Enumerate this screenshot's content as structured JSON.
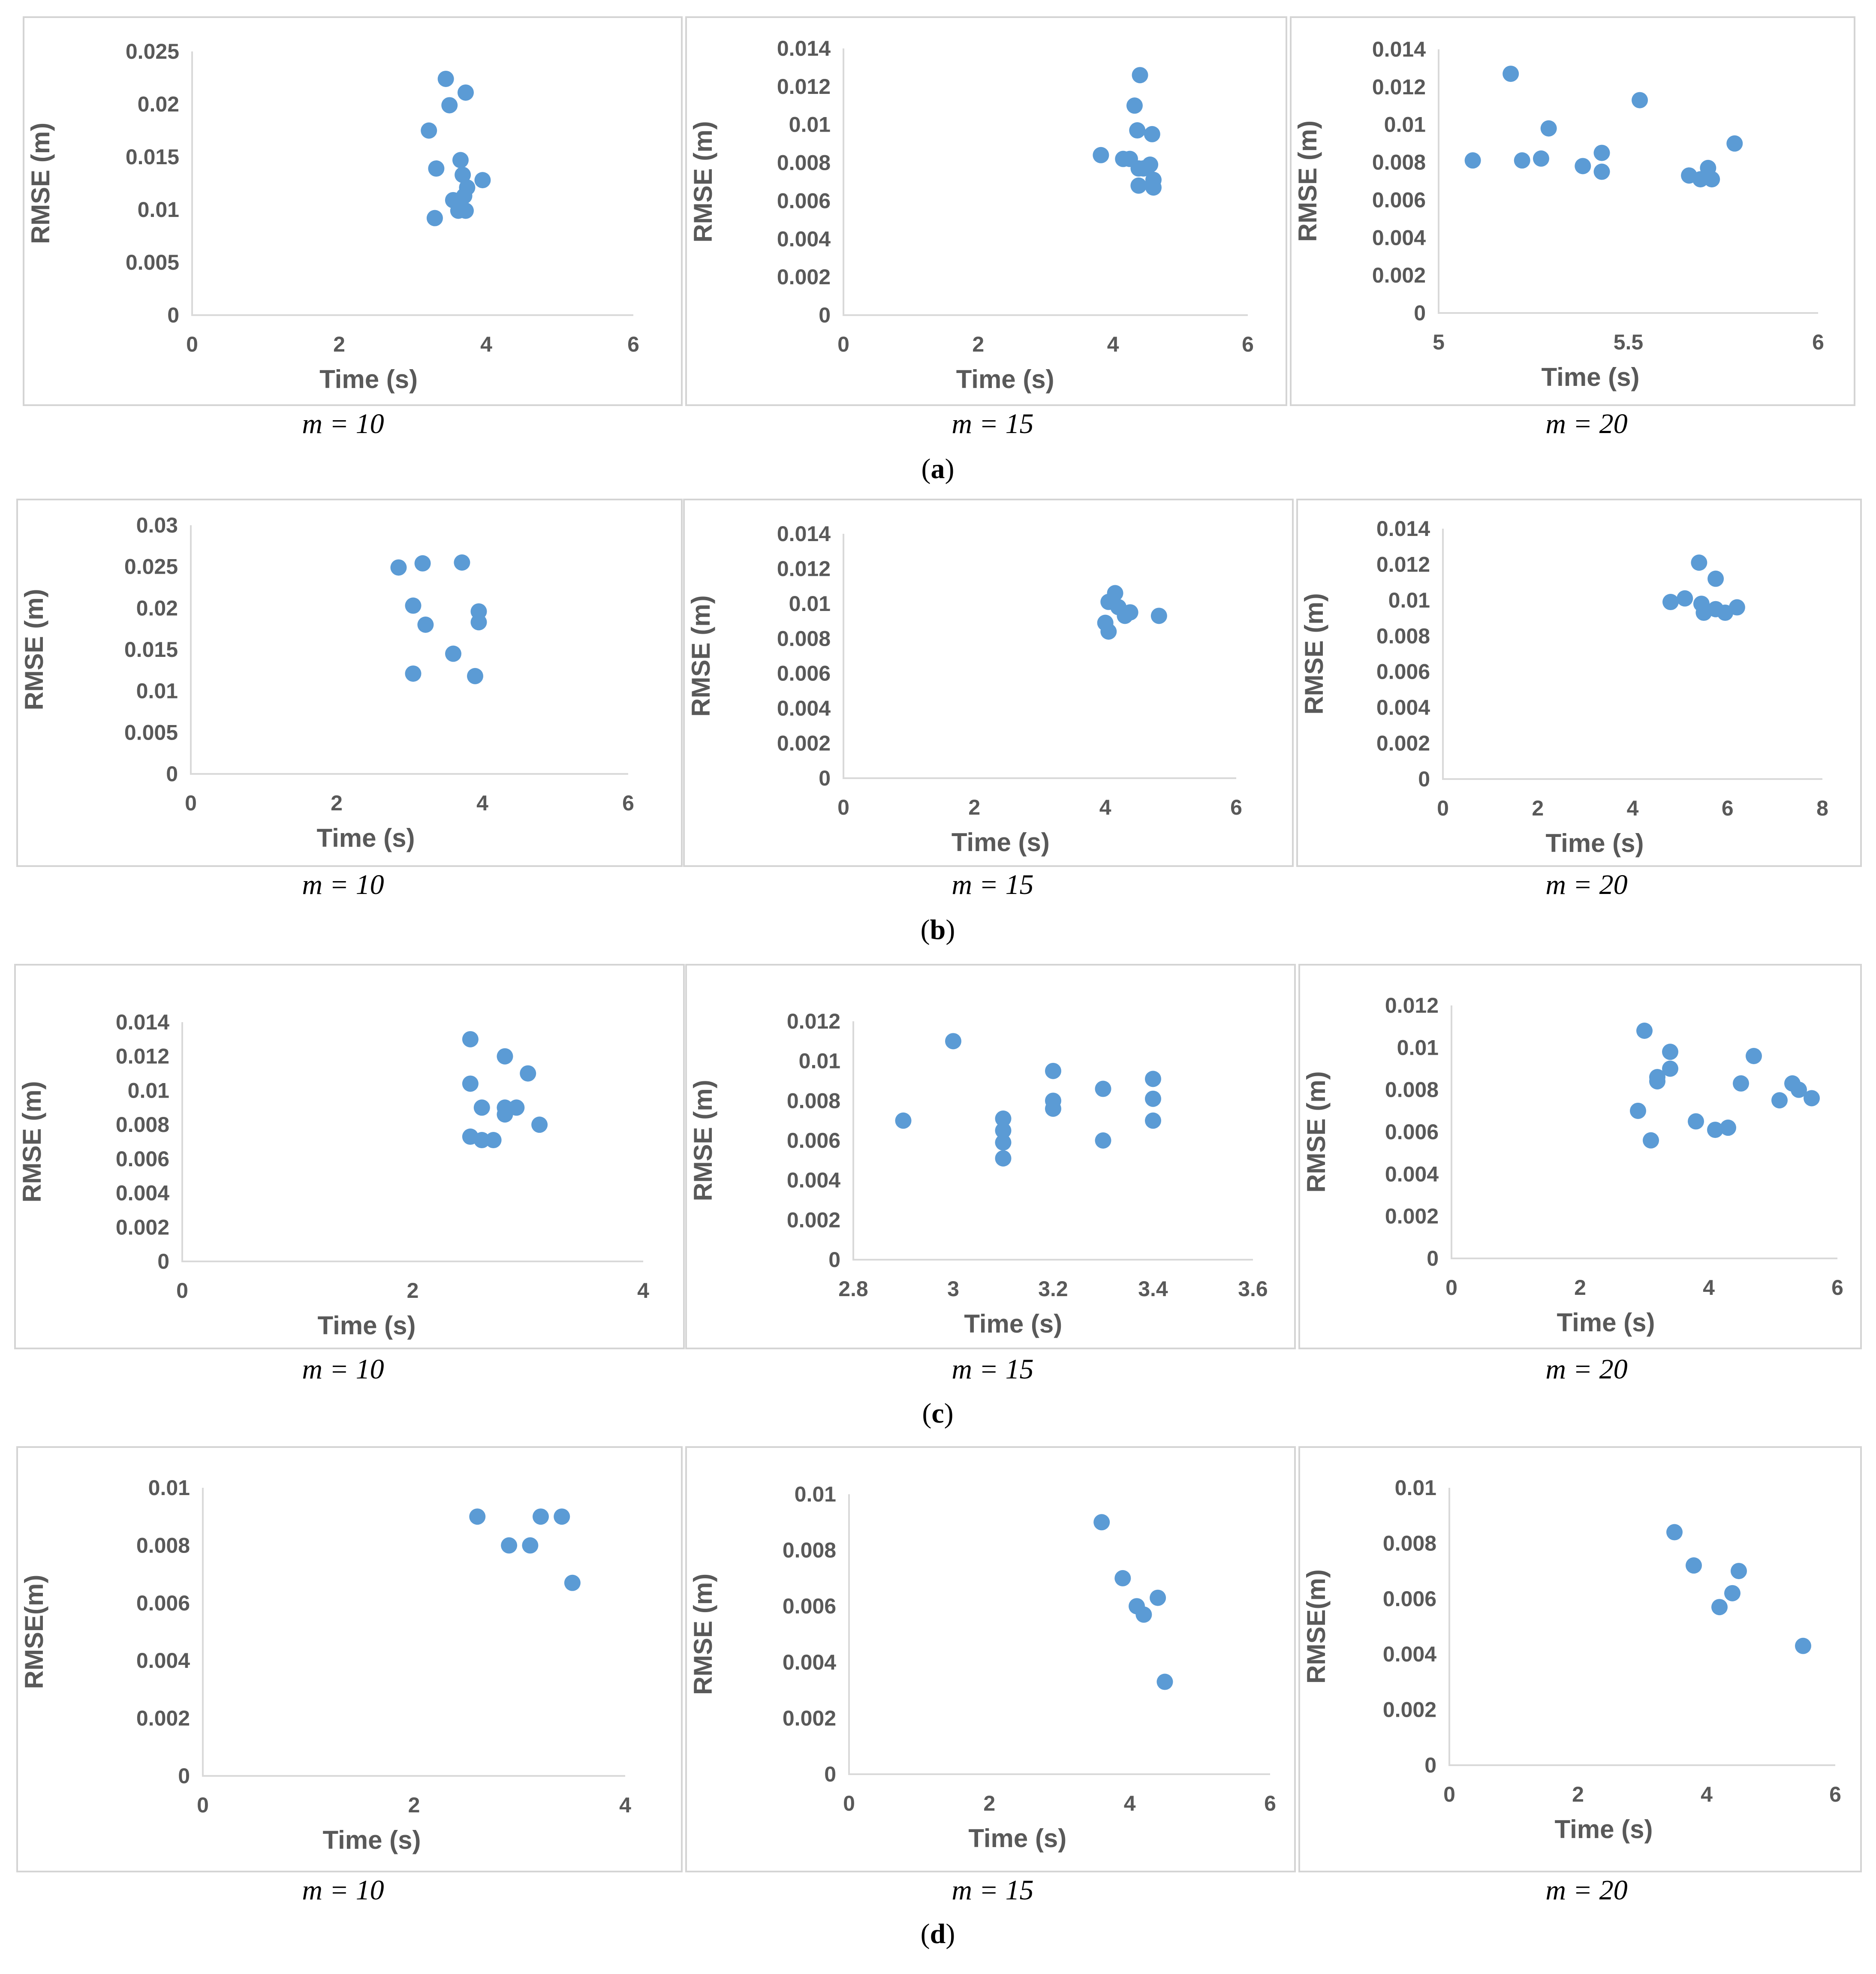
{
  "colors": {
    "marker": "#5b9bd5",
    "axis": "#d9d9d9",
    "text": "#595959",
    "frame": "#d4d4d4"
  },
  "figure": {
    "rows": [
      {
        "label_open": "(",
        "label_letter": "a",
        "label_close": ")",
        "panels": [
          {
            "caption": "m = 10",
            "chart_index": 0
          },
          {
            "caption": "m = 15",
            "chart_index": 1
          },
          {
            "caption": "m = 20",
            "chart_index": 2
          }
        ]
      },
      {
        "label_open": "(",
        "label_letter": "b",
        "label_close": ")",
        "panels": [
          {
            "caption": "m = 10",
            "chart_index": 3
          },
          {
            "caption": "m = 15",
            "chart_index": 4
          },
          {
            "caption": "m = 20",
            "chart_index": 5
          }
        ]
      },
      {
        "label_open": "(",
        "label_letter": "c",
        "label_close": ")",
        "panels": [
          {
            "caption": "m = 10",
            "chart_index": 6
          },
          {
            "caption": "m = 15",
            "chart_index": 7
          },
          {
            "caption": "m = 20",
            "chart_index": 8
          }
        ]
      },
      {
        "label_open": "(",
        "label_letter": "d",
        "label_close": ")",
        "panels": [
          {
            "caption": "m = 10",
            "chart_index": 9
          },
          {
            "caption": "m = 15",
            "chart_index": 10
          },
          {
            "caption": "m = 20",
            "chart_index": 11
          }
        ]
      }
    ]
  },
  "chart_data": [
    {
      "type": "scatter",
      "panel": "a",
      "caption": "m = 10",
      "xlabel": "Time (s)",
      "ylabel": "RMSE (m)",
      "xlim": [
        0,
        6
      ],
      "ylim": [
        0,
        0.025
      ],
      "xticks": [
        "0",
        "2",
        "4",
        "6"
      ],
      "yticks": [
        "0",
        "0.005",
        "0.01",
        "0.015",
        "0.02",
        "0.025"
      ],
      "points": [
        [
          3.45,
          0.0224
        ],
        [
          3.72,
          0.0211
        ],
        [
          3.5,
          0.0199
        ],
        [
          3.22,
          0.0175
        ],
        [
          3.32,
          0.0139
        ],
        [
          3.65,
          0.0147
        ],
        [
          3.68,
          0.0133
        ],
        [
          3.95,
          0.0128
        ],
        [
          3.74,
          0.0121
        ],
        [
          3.7,
          0.0113
        ],
        [
          3.55,
          0.0109
        ],
        [
          3.65,
          0.0108
        ],
        [
          3.62,
          0.0099
        ],
        [
          3.72,
          0.0099
        ],
        [
          3.3,
          0.0092
        ]
      ]
    },
    {
      "type": "scatter",
      "panel": "a",
      "caption": "m = 15",
      "xlabel": "Time (s)",
      "ylabel": "RMSE (m)",
      "xlim": [
        0,
        6
      ],
      "ylim": [
        0,
        0.014
      ],
      "xticks": [
        "0",
        "2",
        "4",
        "6"
      ],
      "yticks": [
        "0",
        "0.002",
        "0.004",
        "0.006",
        "0.008",
        "0.01",
        "0.012",
        "0.014"
      ],
      "points": [
        [
          4.4,
          0.0126
        ],
        [
          4.32,
          0.011
        ],
        [
          4.36,
          0.0097
        ],
        [
          4.58,
          0.0095
        ],
        [
          3.82,
          0.0084
        ],
        [
          4.15,
          0.0082
        ],
        [
          4.25,
          0.0082
        ],
        [
          4.55,
          0.0079
        ],
        [
          4.38,
          0.0077
        ],
        [
          4.45,
          0.0077
        ],
        [
          4.6,
          0.0071
        ],
        [
          4.6,
          0.0067
        ],
        [
          4.38,
          0.0068
        ]
      ]
    },
    {
      "type": "scatter",
      "panel": "a",
      "caption": "m = 20",
      "xlabel": "Time (s)",
      "ylabel": "RMSE (m)",
      "xlim": [
        5,
        6
      ],
      "ylim": [
        0,
        0.014
      ],
      "xticks": [
        "5",
        "5.5",
        "6"
      ],
      "yticks": [
        "0",
        "0.002",
        "0.004",
        "0.006",
        "0.008",
        "0.01",
        "0.012",
        "0.014"
      ],
      "points": [
        [
          5.19,
          0.0127
        ],
        [
          5.53,
          0.0113
        ],
        [
          5.29,
          0.0098
        ],
        [
          5.78,
          0.009
        ],
        [
          5.43,
          0.0085
        ],
        [
          5.09,
          0.0081
        ],
        [
          5.22,
          0.0081
        ],
        [
          5.27,
          0.0082
        ],
        [
          5.38,
          0.0078
        ],
        [
          5.43,
          0.0075
        ],
        [
          5.71,
          0.0077
        ],
        [
          5.66,
          0.0073
        ],
        [
          5.69,
          0.0071
        ],
        [
          5.72,
          0.0071
        ]
      ]
    },
    {
      "type": "scatter",
      "panel": "b",
      "caption": "m = 10",
      "xlabel": "Time (s)",
      "ylabel": "RMSE (m)",
      "xlim": [
        0,
        6
      ],
      "ylim": [
        0,
        0.03
      ],
      "xticks": [
        "0",
        "2",
        "4",
        "6"
      ],
      "yticks": [
        "0",
        "0.005",
        "0.01",
        "0.015",
        "0.02",
        "0.025",
        "0.03"
      ],
      "points": [
        [
          2.85,
          0.0249
        ],
        [
          3.18,
          0.0254
        ],
        [
          3.72,
          0.0255
        ],
        [
          3.05,
          0.0203
        ],
        [
          3.95,
          0.0196
        ],
        [
          3.95,
          0.0183
        ],
        [
          3.22,
          0.018
        ],
        [
          3.6,
          0.0145
        ],
        [
          3.05,
          0.0121
        ],
        [
          3.9,
          0.0118
        ]
      ]
    },
    {
      "type": "scatter",
      "panel": "b",
      "caption": "m = 15",
      "xlabel": "Time (s)",
      "ylabel": "RMSE (m)",
      "xlim": [
        0,
        6
      ],
      "ylim": [
        0,
        0.014
      ],
      "xticks": [
        "0",
        "2",
        "4",
        "6"
      ],
      "yticks": [
        "0",
        "0.002",
        "0.004",
        "0.006",
        "0.008",
        "0.01",
        "0.012",
        "0.014"
      ],
      "points": [
        [
          4.15,
          0.0106
        ],
        [
          4.05,
          0.0101
        ],
        [
          4.2,
          0.0098
        ],
        [
          4.38,
          0.0095
        ],
        [
          4.3,
          0.0093
        ],
        [
          4.82,
          0.0093
        ],
        [
          4.0,
          0.0089
        ],
        [
          4.05,
          0.0084
        ]
      ]
    },
    {
      "type": "scatter",
      "panel": "b",
      "caption": "m = 20",
      "xlabel": "Time (s)",
      "ylabel": "RMSE (m)",
      "xlim": [
        0,
        8
      ],
      "ylim": [
        0,
        0.014
      ],
      "xticks": [
        "0",
        "2",
        "4",
        "6",
        "8"
      ],
      "yticks": [
        "0",
        "0.002",
        "0.004",
        "0.006",
        "0.008",
        "0.01",
        "0.012",
        "0.014"
      ],
      "points": [
        [
          5.4,
          0.0121
        ],
        [
          5.75,
          0.0112
        ],
        [
          4.8,
          0.0099
        ],
        [
          5.1,
          0.0101
        ],
        [
          5.45,
          0.0098
        ],
        [
          5.75,
          0.0095
        ],
        [
          6.2,
          0.0096
        ],
        [
          5.5,
          0.0093
        ],
        [
          5.95,
          0.0093
        ]
      ]
    },
    {
      "type": "scatter",
      "panel": "c",
      "caption": "m = 10",
      "xlabel": "Time (s)",
      "ylabel": "RMSE (m)",
      "xlim": [
        0,
        4
      ],
      "ylim": [
        0,
        0.014
      ],
      "xticks": [
        "0",
        "2",
        "4"
      ],
      "yticks": [
        "0",
        "0.002",
        "0.004",
        "0.006",
        "0.008",
        "0.01",
        "0.012",
        "0.014"
      ],
      "points": [
        [
          2.5,
          0.013
        ],
        [
          2.8,
          0.012
        ],
        [
          3.0,
          0.011
        ],
        [
          2.5,
          0.0104
        ],
        [
          2.6,
          0.009
        ],
        [
          2.8,
          0.009
        ],
        [
          2.9,
          0.009
        ],
        [
          2.8,
          0.0086
        ],
        [
          3.1,
          0.008
        ],
        [
          2.5,
          0.0073
        ],
        [
          2.6,
          0.0071
        ],
        [
          2.7,
          0.0071
        ]
      ]
    },
    {
      "type": "scatter",
      "panel": "c",
      "caption": "m = 15",
      "xlabel": "Time (s)",
      "ylabel": "RMSE (m)",
      "xlim": [
        2.8,
        3.6
      ],
      "ylim": [
        0,
        0.012
      ],
      "xticks": [
        "2.8",
        "3",
        "3.2",
        "3.4",
        "3.6"
      ],
      "yticks": [
        "0",
        "0.002",
        "0.004",
        "0.006",
        "0.008",
        "0.01",
        "0.012"
      ],
      "points": [
        [
          3.0,
          0.011
        ],
        [
          3.2,
          0.0095
        ],
        [
          3.4,
          0.0091
        ],
        [
          3.3,
          0.0086
        ],
        [
          3.4,
          0.0081
        ],
        [
          3.2,
          0.008
        ],
        [
          3.2,
          0.0076
        ],
        [
          2.9,
          0.007
        ],
        [
          3.1,
          0.0071
        ],
        [
          3.4,
          0.007
        ],
        [
          3.1,
          0.0065
        ],
        [
          3.1,
          0.0059
        ],
        [
          3.3,
          0.006
        ],
        [
          3.1,
          0.0051
        ]
      ]
    },
    {
      "type": "scatter",
      "panel": "c",
      "caption": "m = 20",
      "xlabel": "Time (s)",
      "ylabel": "RMSE (m)",
      "xlim": [
        0,
        6
      ],
      "ylim": [
        0,
        0.012
      ],
      "xticks": [
        "0",
        "2",
        "4",
        "6"
      ],
      "yticks": [
        "0",
        "0.002",
        "0.004",
        "0.006",
        "0.008",
        "0.01",
        "0.012"
      ],
      "points": [
        [
          3.0,
          0.0108
        ],
        [
          3.4,
          0.0098
        ],
        [
          4.7,
          0.0096
        ],
        [
          3.4,
          0.009
        ],
        [
          3.2,
          0.0086
        ],
        [
          3.2,
          0.0084
        ],
        [
          4.5,
          0.0083
        ],
        [
          5.3,
          0.0083
        ],
        [
          5.4,
          0.008
        ],
        [
          5.6,
          0.0076
        ],
        [
          5.1,
          0.0075
        ],
        [
          2.9,
          0.007
        ],
        [
          3.8,
          0.0065
        ],
        [
          4.1,
          0.0061
        ],
        [
          4.3,
          0.0062
        ],
        [
          3.1,
          0.0056
        ]
      ]
    },
    {
      "type": "scatter",
      "panel": "d",
      "caption": "m = 10",
      "xlabel": "Time (s)",
      "ylabel": "RMSE(m)",
      "xlim": [
        0,
        4
      ],
      "ylim": [
        0,
        0.01
      ],
      "xticks": [
        "0",
        "2",
        "4"
      ],
      "yticks": [
        "0",
        "0.002",
        "0.004",
        "0.006",
        "0.008",
        "0.01"
      ],
      "points": [
        [
          2.6,
          0.009
        ],
        [
          3.2,
          0.009
        ],
        [
          3.4,
          0.009
        ],
        [
          2.9,
          0.008
        ],
        [
          3.1,
          0.008
        ],
        [
          3.5,
          0.0067
        ]
      ]
    },
    {
      "type": "scatter",
      "panel": "d",
      "caption": "m = 15",
      "xlabel": "Time  (s)",
      "ylabel": "RMSE  (m)",
      "xlim": [
        0,
        6
      ],
      "ylim": [
        0,
        0.01
      ],
      "xticks": [
        "0",
        "2",
        "4",
        "6"
      ],
      "yticks": [
        "0",
        "0.002",
        "0.004",
        "0.006",
        "0.008",
        "0.01"
      ],
      "points": [
        [
          3.6,
          0.009
        ],
        [
          3.9,
          0.007
        ],
        [
          4.1,
          0.006
        ],
        [
          4.4,
          0.0063
        ],
        [
          4.2,
          0.0057
        ],
        [
          4.5,
          0.0033
        ]
      ]
    },
    {
      "type": "scatter",
      "panel": "d",
      "caption": "m = 20",
      "xlabel": "Time (s)",
      "ylabel": "RMSE(m)",
      "xlim": [
        0,
        6
      ],
      "ylim": [
        0,
        0.01
      ],
      "xticks": [
        "0",
        "2",
        "4",
        "6"
      ],
      "yticks": [
        "0",
        "0.002",
        "0.004",
        "0.006",
        "0.008",
        "0.01"
      ],
      "points": [
        [
          3.5,
          0.0084
        ],
        [
          3.8,
          0.0072
        ],
        [
          4.5,
          0.007
        ],
        [
          4.4,
          0.0062
        ],
        [
          4.2,
          0.0057
        ],
        [
          5.5,
          0.0043
        ]
      ]
    }
  ]
}
